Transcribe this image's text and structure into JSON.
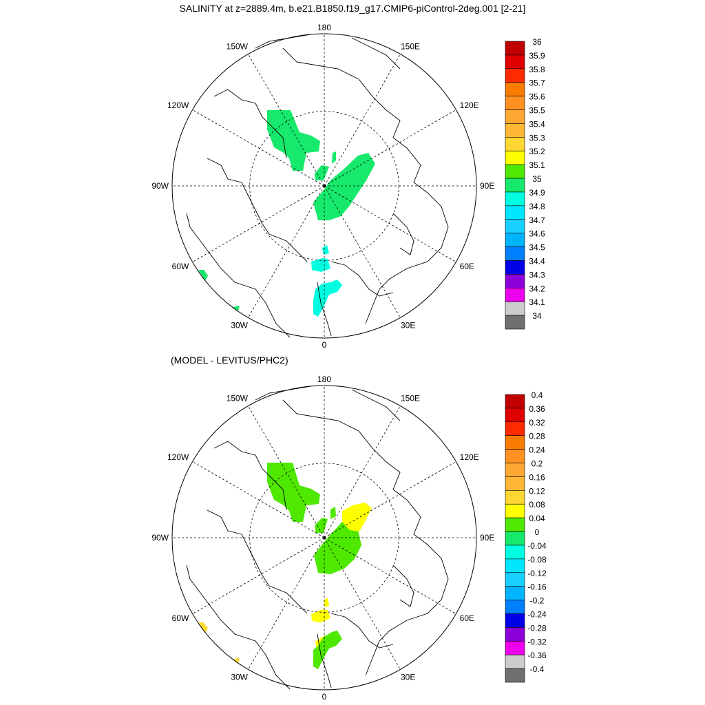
{
  "chart_data": [
    {
      "type": "heatmap",
      "projection": "north-polar-stereographic",
      "title": "SALINITY at z=2889.4m, b.e21.B1850.f19_g17.CMIP6-piControl-2deg.001 [2-21]",
      "longitude_labels": [
        "180",
        "150E",
        "120E",
        "90E",
        "60E",
        "30E",
        "0",
        "30W",
        "60W",
        "90W",
        "120W",
        "150W"
      ],
      "colorbar": {
        "levels": [
          "36",
          "35.9",
          "35.8",
          "35.7",
          "35.6",
          "35.5",
          "35.4",
          "35.3",
          "35.2",
          "35.1",
          "35",
          "34.9",
          "34.8",
          "34.7",
          "34.6",
          "34.5",
          "34.4",
          "34.3",
          "34.2",
          "34.1",
          "34"
        ],
        "colors": [
          "#c00000",
          "#e00000",
          "#ff2a00",
          "#f97c00",
          "#ff9122",
          "#ffa733",
          "#ffb733",
          "#ffd733",
          "#ffff00",
          "#4ee800",
          "#16e96b",
          "#00ffe0",
          "#00e6ff",
          "#18d0ff",
          "#00b4ff",
          "#0080ff",
          "#0000e8",
          "#8b00d9",
          "#ed00ed",
          "#cccccc",
          "#707070"
        ]
      },
      "regions": [
        {
          "name": "canada-basin-deep",
          "value_color": "#16e96b",
          "pts": [
            [
              388,
              160
            ],
            [
              422,
              160
            ],
            [
              435,
              192
            ],
            [
              452,
              197
            ],
            [
              465,
              205
            ],
            [
              463,
              220
            ],
            [
              445,
              222
            ],
            [
              440,
              248
            ],
            [
              425,
              248
            ],
            [
              420,
              230
            ],
            [
              412,
              222
            ],
            [
              398,
              214
            ],
            [
              388,
              188
            ]
          ]
        },
        {
          "name": "eurasian-basin-deep",
          "value_color": "#16e96b",
          "pts": [
            [
              480,
              262
            ],
            [
              500,
              245
            ],
            [
              520,
              226
            ],
            [
              535,
              222
            ],
            [
              545,
              238
            ],
            [
              532,
              262
            ],
            [
              520,
              280
            ],
            [
              507,
              300
            ],
            [
              495,
              314
            ],
            [
              478,
              320
            ],
            [
              462,
              320
            ],
            [
              455,
              294
            ],
            [
              470,
              276
            ]
          ]
        },
        {
          "name": "small-patch-a",
          "value_color": "#16e96b",
          "pts": [
            [
              457,
              252
            ],
            [
              467,
              240
            ],
            [
              478,
              242
            ],
            [
              470,
              262
            ],
            [
              458,
              262
            ]
          ]
        },
        {
          "name": "small-patch-b",
          "value_color": "#16e96b",
          "pts": [
            [
              483,
              222
            ],
            [
              488,
              220
            ],
            [
              488,
              233
            ],
            [
              482,
              238
            ]
          ]
        },
        {
          "name": "greenland-sea-patch",
          "value_color": "#00ffe0",
          "pts": [
            [
              452,
              380
            ],
            [
              468,
              375
            ],
            [
              476,
              376
            ],
            [
              480,
              390
            ],
            [
              466,
              395
            ],
            [
              453,
              392
            ]
          ]
        },
        {
          "name": "greenland-sea-dot",
          "value_color": "#00ffe0",
          "pts": [
            [
              468,
              360
            ],
            [
              475,
              356
            ],
            [
              478,
              368
            ],
            [
              470,
              370
            ]
          ]
        },
        {
          "name": "norwegian-sea-patch",
          "value_color": "#00ffe0",
          "pts": [
            [
              458,
              420
            ],
            [
              468,
              412
            ],
            [
              480,
              410
            ],
            [
              490,
              406
            ],
            [
              497,
              414
            ],
            [
              490,
              424
            ],
            [
              478,
              428
            ],
            [
              470,
              446
            ],
            [
              462,
              460
            ],
            [
              455,
              456
            ],
            [
              455,
              436
            ]
          ]
        },
        {
          "name": "labrador-patch",
          "value_color": "#16e96b",
          "pts": [
            [
              288,
              392
            ],
            [
              296,
              392
            ],
            [
              302,
              400
            ],
            [
              298,
              408
            ]
          ]
        },
        {
          "name": "atlantic-dot",
          "value_color": "#16e96b",
          "pts": [
            [
              338,
              446
            ],
            [
              348,
              444
            ],
            [
              346,
              452
            ]
          ]
        }
      ]
    },
    {
      "type": "heatmap",
      "projection": "north-polar-stereographic",
      "title": "(MODEL - LEVITUS/PHC2)",
      "longitude_labels": [
        "180",
        "150E",
        "120E",
        "90E",
        "60E",
        "30E",
        "0",
        "30W",
        "60W",
        "90W",
        "120W",
        "150W"
      ],
      "colorbar": {
        "levels": [
          "0.4",
          "0.36",
          "0.32",
          "0.28",
          "0.24",
          "0.2",
          "0.16",
          "0.12",
          "0.08",
          "0.04",
          "0",
          "-0.04",
          "-0.08",
          "-0.12",
          "-0.16",
          "-0.2",
          "-0.24",
          "-0.28",
          "-0.32",
          "-0.36",
          "-0.4"
        ],
        "colors": [
          "#c00000",
          "#e00000",
          "#ff2a00",
          "#f97c00",
          "#ff9122",
          "#ffa733",
          "#ffb733",
          "#ffd733",
          "#ffff00",
          "#4ee800",
          "#16e96b",
          "#00ffe0",
          "#00e6ff",
          "#18d0ff",
          "#00b4ff",
          "#0080ff",
          "#0000e8",
          "#8b00d9",
          "#ed00ed",
          "#cccccc",
          "#707070"
        ]
      },
      "regions": [
        {
          "name": "canada-basin-diff",
          "value_color": "#4ee800",
          "pts": [
            [
              388,
              672
            ],
            [
              425,
              672
            ],
            [
              435,
              705
            ],
            [
              452,
              710
            ],
            [
              465,
              718
            ],
            [
              463,
              732
            ],
            [
              445,
              734
            ],
            [
              440,
              758
            ],
            [
              425,
              758
            ],
            [
              420,
              742
            ],
            [
              412,
              734
            ],
            [
              398,
              726
            ],
            [
              388,
              700
            ]
          ]
        },
        {
          "name": "eurasian-basin-diff",
          "value_color": "#4ee800",
          "pts": [
            [
              482,
              774
            ],
            [
              497,
              758
            ],
            [
              520,
              770
            ],
            [
              525,
              792
            ],
            [
              515,
              812
            ],
            [
              500,
              826
            ],
            [
              480,
              834
            ],
            [
              462,
              832
            ],
            [
              456,
              806
            ],
            [
              470,
              788
            ]
          ]
        },
        {
          "name": "eurasian-basin-positive",
          "value_color": "#ffff00",
          "pts": [
            [
              497,
              742
            ],
            [
              512,
              734
            ],
            [
              530,
              730
            ],
            [
              540,
              738
            ],
            [
              530,
              758
            ],
            [
              522,
              772
            ],
            [
              508,
              770
            ],
            [
              497,
              758
            ]
          ]
        },
        {
          "name": "small-patch-diff-a",
          "value_color": "#4ee800",
          "pts": [
            [
              458,
              762
            ],
            [
              468,
              752
            ],
            [
              476,
              754
            ],
            [
              470,
              774
            ],
            [
              458,
              774
            ]
          ]
        },
        {
          "name": "small-patch-diff-b",
          "value_color": "#4ee800",
          "pts": [
            [
              480,
              740
            ],
            [
              487,
              736
            ],
            [
              488,
              750
            ],
            [
              480,
              754
            ]
          ]
        },
        {
          "name": "greenland-sea-diff",
          "value_color": "#ffff00",
          "pts": [
            [
              452,
              892
            ],
            [
              468,
              885
            ],
            [
              476,
              886
            ],
            [
              480,
              898
            ],
            [
              466,
              904
            ],
            [
              453,
              902
            ]
          ]
        },
        {
          "name": "greenland-sea-dot-diff",
          "value_color": "#ffff00",
          "pts": [
            [
              470,
              872
            ],
            [
              476,
              868
            ],
            [
              478,
              880
            ],
            [
              472,
              882
            ]
          ]
        },
        {
          "name": "norwegian-sea-diff-pos",
          "value_color": "#ffff00",
          "pts": [
            [
              458,
              932
            ],
            [
              470,
              924
            ],
            [
              482,
              920
            ],
            [
              488,
              928
            ],
            [
              478,
              938
            ],
            [
              468,
              944
            ],
            [
              460,
              942
            ]
          ]
        },
        {
          "name": "norwegian-sea-diff",
          "value_color": "#4ee800",
          "pts": [
            [
              470,
              925
            ],
            [
              482,
              918
            ],
            [
              490,
              916
            ],
            [
              497,
              928
            ],
            [
              488,
              938
            ],
            [
              478,
              942
            ],
            [
              470,
              956
            ],
            [
              462,
              972
            ],
            [
              455,
              968
            ],
            [
              455,
              944
            ],
            [
              462,
              938
            ]
          ]
        },
        {
          "name": "labrador-diff",
          "value_color": "#ffd733",
          "pts": [
            [
              288,
              904
            ],
            [
              295,
              904
            ],
            [
              302,
              912
            ],
            [
              298,
              920
            ]
          ]
        },
        {
          "name": "atlantic-dot-diff",
          "value_color": "#ffd733",
          "pts": [
            [
              338,
              958
            ],
            [
              348,
              955
            ],
            [
              346,
              964
            ]
          ]
        }
      ]
    }
  ]
}
